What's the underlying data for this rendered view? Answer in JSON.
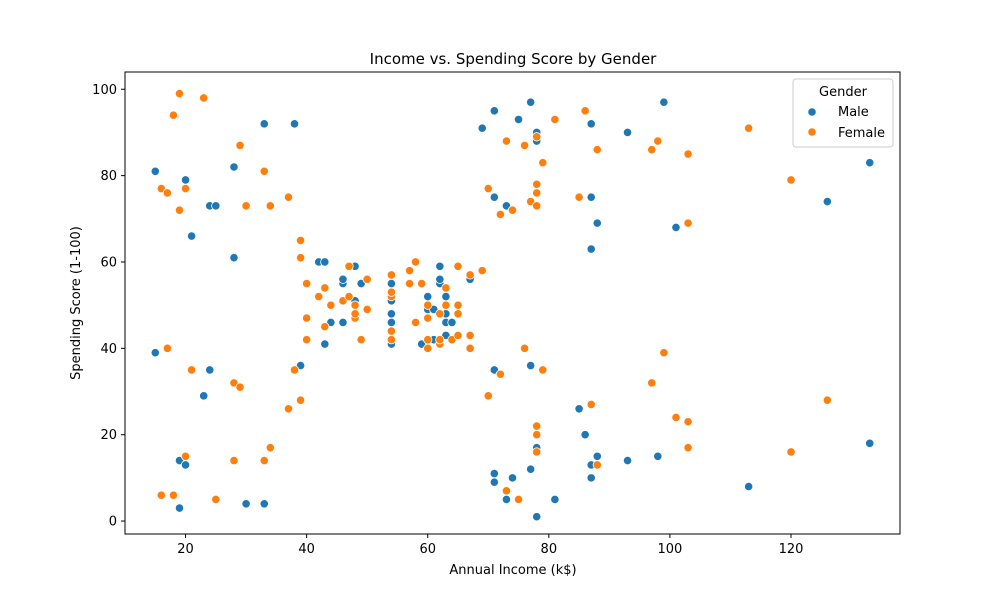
{
  "chart_data": {
    "type": "scatter",
    "title": "Income vs. Spending Score by Gender",
    "xlabel": "Annual Income (k$)",
    "ylabel": "Spending Score (1-100)",
    "xlim": [
      10,
      138
    ],
    "ylim": [
      -3,
      104
    ],
    "xticks": [
      20,
      40,
      60,
      80,
      100,
      120
    ],
    "yticks": [
      0,
      20,
      40,
      60,
      80,
      100
    ],
    "grid": false,
    "legend": {
      "title": "Gender",
      "position": "top-right"
    },
    "series": [
      {
        "name": "Male",
        "color": "#1f77b4",
        "points": [
          [
            15,
            39
          ],
          [
            15,
            81
          ],
          [
            19,
            3
          ],
          [
            19,
            14
          ],
          [
            20,
            13
          ],
          [
            20,
            79
          ],
          [
            21,
            66
          ],
          [
            23,
            29
          ],
          [
            24,
            35
          ],
          [
            24,
            73
          ],
          [
            25,
            73
          ],
          [
            28,
            61
          ],
          [
            28,
            82
          ],
          [
            30,
            4
          ],
          [
            33,
            4
          ],
          [
            33,
            92
          ],
          [
            38,
            92
          ],
          [
            39,
            36
          ],
          [
            42,
            60
          ],
          [
            43,
            41
          ],
          [
            43,
            60
          ],
          [
            44,
            46
          ],
          [
            46,
            46
          ],
          [
            46,
            55
          ],
          [
            46,
            56
          ],
          [
            48,
            51
          ],
          [
            48,
            59
          ],
          [
            49,
            55
          ],
          [
            54,
            41
          ],
          [
            54,
            46
          ],
          [
            54,
            48
          ],
          [
            54,
            51
          ],
          [
            54,
            55
          ],
          [
            59,
            41
          ],
          [
            60,
            49
          ],
          [
            60,
            52
          ],
          [
            61,
            42
          ],
          [
            61,
            49
          ],
          [
            62,
            55
          ],
          [
            62,
            56
          ],
          [
            62,
            59
          ],
          [
            63,
            43
          ],
          [
            63,
            46
          ],
          [
            63,
            48
          ],
          [
            63,
            52
          ],
          [
            64,
            46
          ],
          [
            67,
            56
          ],
          [
            69,
            91
          ],
          [
            71,
            9
          ],
          [
            71,
            11
          ],
          [
            71,
            35
          ],
          [
            71,
            75
          ],
          [
            71,
            95
          ],
          [
            73,
            5
          ],
          [
            73,
            73
          ],
          [
            74,
            10
          ],
          [
            75,
            93
          ],
          [
            77,
            12
          ],
          [
            77,
            36
          ],
          [
            77,
            97
          ],
          [
            78,
            1
          ],
          [
            78,
            17
          ],
          [
            78,
            88
          ],
          [
            78,
            89
          ],
          [
            78,
            90
          ],
          [
            81,
            5
          ],
          [
            85,
            26
          ],
          [
            86,
            20
          ],
          [
            87,
            10
          ],
          [
            87,
            13
          ],
          [
            87,
            63
          ],
          [
            87,
            75
          ],
          [
            87,
            92
          ],
          [
            88,
            15
          ],
          [
            88,
            69
          ],
          [
            93,
            14
          ],
          [
            93,
            90
          ],
          [
            98,
            15
          ],
          [
            99,
            97
          ],
          [
            101,
            68
          ],
          [
            113,
            8
          ],
          [
            126,
            74
          ],
          [
            133,
            18
          ],
          [
            133,
            83
          ]
        ]
      },
      {
        "name": "Female",
        "color": "#ff7f0e",
        "points": [
          [
            16,
            6
          ],
          [
            16,
            77
          ],
          [
            17,
            40
          ],
          [
            17,
            76
          ],
          [
            18,
            6
          ],
          [
            18,
            94
          ],
          [
            19,
            72
          ],
          [
            19,
            99
          ],
          [
            20,
            15
          ],
          [
            20,
            77
          ],
          [
            21,
            35
          ],
          [
            23,
            98
          ],
          [
            25,
            5
          ],
          [
            28,
            14
          ],
          [
            28,
            32
          ],
          [
            29,
            31
          ],
          [
            29,
            87
          ],
          [
            30,
            73
          ],
          [
            33,
            14
          ],
          [
            33,
            81
          ],
          [
            34,
            17
          ],
          [
            34,
            73
          ],
          [
            37,
            26
          ],
          [
            37,
            75
          ],
          [
            38,
            35
          ],
          [
            39,
            28
          ],
          [
            39,
            61
          ],
          [
            39,
            65
          ],
          [
            40,
            42
          ],
          [
            40,
            47
          ],
          [
            40,
            55
          ],
          [
            42,
            52
          ],
          [
            43,
            45
          ],
          [
            43,
            54
          ],
          [
            44,
            50
          ],
          [
            46,
            51
          ],
          [
            47,
            52
          ],
          [
            47,
            59
          ],
          [
            48,
            47
          ],
          [
            48,
            48
          ],
          [
            48,
            50
          ],
          [
            49,
            42
          ],
          [
            50,
            49
          ],
          [
            50,
            56
          ],
          [
            54,
            42
          ],
          [
            54,
            44
          ],
          [
            54,
            52
          ],
          [
            54,
            53
          ],
          [
            54,
            57
          ],
          [
            57,
            55
          ],
          [
            57,
            58
          ],
          [
            58,
            46
          ],
          [
            58,
            60
          ],
          [
            59,
            55
          ],
          [
            60,
            40
          ],
          [
            60,
            42
          ],
          [
            60,
            47
          ],
          [
            60,
            50
          ],
          [
            62,
            41
          ],
          [
            62,
            42
          ],
          [
            62,
            48
          ],
          [
            63,
            50
          ],
          [
            63,
            54
          ],
          [
            64,
            42
          ],
          [
            65,
            43
          ],
          [
            65,
            48
          ],
          [
            65,
            50
          ],
          [
            65,
            59
          ],
          [
            67,
            40
          ],
          [
            67,
            43
          ],
          [
            67,
            57
          ],
          [
            69,
            58
          ],
          [
            70,
            29
          ],
          [
            70,
            77
          ],
          [
            72,
            34
          ],
          [
            72,
            71
          ],
          [
            73,
            7
          ],
          [
            73,
            88
          ],
          [
            74,
            72
          ],
          [
            75,
            5
          ],
          [
            76,
            40
          ],
          [
            76,
            87
          ],
          [
            77,
            74
          ],
          [
            78,
            16
          ],
          [
            78,
            20
          ],
          [
            78,
            22
          ],
          [
            78,
            73
          ],
          [
            78,
            76
          ],
          [
            78,
            78
          ],
          [
            78,
            89
          ],
          [
            79,
            35
          ],
          [
            79,
            83
          ],
          [
            81,
            93
          ],
          [
            85,
            75
          ],
          [
            86,
            95
          ],
          [
            87,
            27
          ],
          [
            88,
            13
          ],
          [
            88,
            86
          ],
          [
            97,
            32
          ],
          [
            97,
            86
          ],
          [
            98,
            88
          ],
          [
            99,
            39
          ],
          [
            101,
            24
          ],
          [
            103,
            17
          ],
          [
            103,
            23
          ],
          [
            103,
            69
          ],
          [
            103,
            85
          ],
          [
            113,
            91
          ],
          [
            120,
            16
          ],
          [
            120,
            79
          ],
          [
            126,
            28
          ]
        ]
      }
    ]
  }
}
